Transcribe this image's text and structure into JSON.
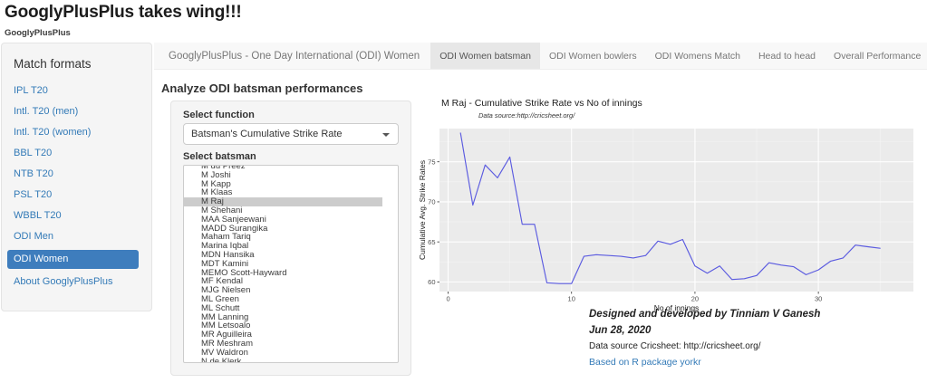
{
  "page": {
    "title": "GooglyPlusPlus takes wing!!!",
    "brand": "GooglyPlusPlus"
  },
  "sidebar": {
    "heading": "Match formats",
    "items": [
      {
        "label": "IPL T20",
        "active": false
      },
      {
        "label": "Intl. T20 (men)",
        "active": false
      },
      {
        "label": "Intl. T20 (women)",
        "active": false
      },
      {
        "label": "BBL T20",
        "active": false
      },
      {
        "label": "NTB T20",
        "active": false
      },
      {
        "label": "PSL T20",
        "active": false
      },
      {
        "label": "WBBL T20",
        "active": false
      },
      {
        "label": "ODI Men",
        "active": false
      },
      {
        "label": "ODI Women",
        "active": true
      },
      {
        "label": "About GooglyPlusPlus",
        "active": false
      }
    ]
  },
  "navbar": {
    "title": "GooglyPlusPlus - One Day International (ODI) Women",
    "tabs": [
      {
        "label": "ODI Women batsman",
        "active": true
      },
      {
        "label": "ODI Women bowlers",
        "active": false
      },
      {
        "label": "ODI Womens Match",
        "active": false
      },
      {
        "label": "Head to head",
        "active": false
      },
      {
        "label": "Overall Performance",
        "active": false
      }
    ]
  },
  "main": {
    "heading": "Analyze ODI batsman performances",
    "function_label": "Select function",
    "function_value": "Batsman's Cumulative Strike Rate",
    "batsman_label": "Select batsman",
    "selected_batsman": "M Raj",
    "batsmen": [
      "M du Preez",
      "M Joshi",
      "M Kapp",
      "M Klaas",
      "M Raj",
      "M Shehani",
      "MAA Sanjeewani",
      "MADD Surangika",
      "Maham Tariq",
      "Marina Iqbal",
      "MDN Hansika",
      "MDT Kamini",
      "MEMO Scott-Hayward",
      "MF Kendal",
      "MJG Nielsen",
      "ML Green",
      "ML Schutt",
      "MM Lanning",
      "MM Letsoalo",
      "MR Aguilleira",
      "MR Meshram",
      "MV Waldron",
      "N de Klerk"
    ]
  },
  "chart_data": {
    "type": "line",
    "title": "M Raj - Cumulative Strike Rate vs No of innings",
    "subtitle": "Data source:http://cricsheet.org/",
    "xlabel": "No of innings",
    "ylabel": "Cumulative Avg. Strike Rates",
    "x": [
      1,
      2,
      3,
      4,
      5,
      6,
      7,
      8,
      9,
      10,
      11,
      12,
      13,
      14,
      15,
      16,
      17,
      18,
      19,
      20,
      21,
      22,
      23,
      24,
      25,
      26,
      27,
      28,
      29,
      30,
      31,
      32,
      33,
      34,
      35
    ],
    "values": [
      78.6,
      69.6,
      74.6,
      73.0,
      75.6,
      67.2,
      67.2,
      59.9,
      59.8,
      59.8,
      63.2,
      63.4,
      63.3,
      63.2,
      63.0,
      63.3,
      65.1,
      64.7,
      65.3,
      62.0,
      61.1,
      62.0,
      60.3,
      60.4,
      60.8,
      62.4,
      62.1,
      61.9,
      60.9,
      61.5,
      62.6,
      63.0,
      64.6,
      64.4,
      64.2
    ],
    "xlim": [
      -0.7,
      37.7
    ],
    "ylim": [
      58.8,
      79.15
    ],
    "xticks": [
      0,
      10,
      20,
      30
    ],
    "yticks": [
      60,
      65,
      70,
      75
    ],
    "xminor": [
      5,
      15,
      25,
      35
    ],
    "yminor": [
      62.5,
      67.5,
      72.5,
      77.5
    ],
    "grid": true,
    "legend": "none",
    "line_color": "#5b5be0",
    "panel_bg": "#ebebeb"
  },
  "footer": {
    "credit": "Designed and developed by Tinniam V Ganesh",
    "date": "Jun 28, 2020",
    "source": "Data source Cricsheet: http://cricsheet.org/",
    "link": "Based on R package yorkr"
  },
  "icons": {
    "function_dropdown": "chevron-down"
  },
  "colors": {
    "sidebar_active_bg": "#3e7dbd",
    "link_blue": "#337ab7",
    "tab_active_bg": "#e7e7e7",
    "strip_bg": "#f8f8f8",
    "well_bg": "#f5f5f5",
    "chart_line": "#5b5be0",
    "chart_panel": "#ebebeb"
  }
}
